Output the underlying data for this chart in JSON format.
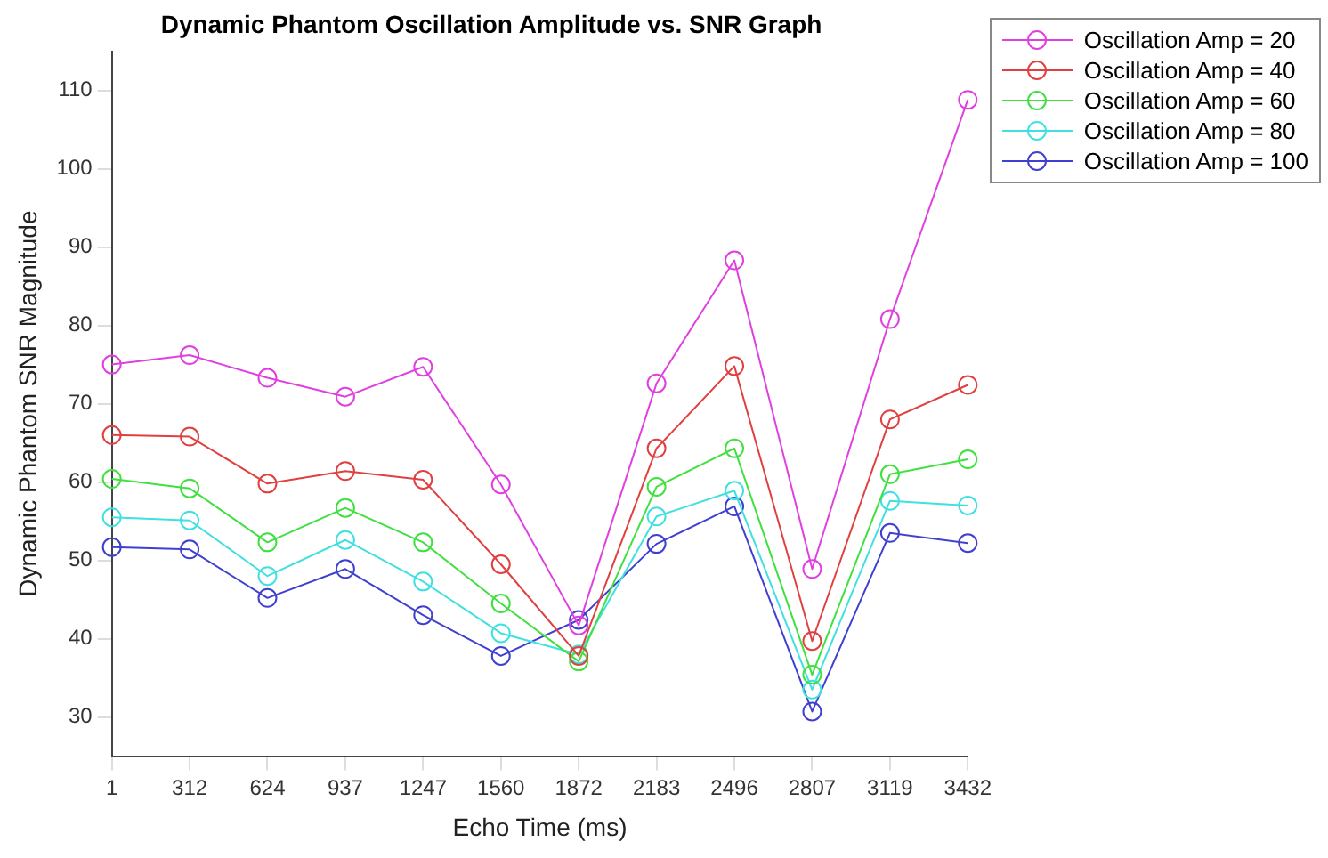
{
  "chart_data": {
    "type": "line",
    "title": "Dynamic Phantom Oscillation Amplitude vs. SNR Graph",
    "xlabel": "Echo Time (ms)",
    "ylabel": "Dynamic Phantom SNR Magnitude",
    "categories": [
      "1",
      "312",
      "624",
      "937",
      "1247",
      "1560",
      "1872",
      "2183",
      "2496",
      "2807",
      "3119",
      "3432"
    ],
    "series": [
      {
        "name": "Oscillation Amp = 20",
        "color": "#e040e0",
        "values": [
          75,
          76.2,
          73.3,
          70.9,
          74.7,
          59.7,
          41.7,
          72.6,
          88.3,
          48.9,
          80.8,
          108.8
        ]
      },
      {
        "name": "Oscillation Amp = 40",
        "color": "#e04040",
        "values": [
          66,
          65.8,
          59.8,
          61.4,
          60.3,
          49.5,
          37.8,
          64.3,
          74.8,
          39.7,
          68,
          72.4
        ]
      },
      {
        "name": "Oscillation Amp = 60",
        "color": "#40e040",
        "values": [
          60.4,
          59.2,
          52.3,
          56.7,
          52.3,
          44.5,
          37.1,
          59.4,
          64.3,
          35.4,
          61,
          62.9
        ]
      },
      {
        "name": "Oscillation Amp = 80",
        "color": "#40e0e0",
        "values": [
          55.5,
          55.1,
          48,
          52.6,
          47.3,
          40.7,
          38,
          55.6,
          58.9,
          33.5,
          57.6,
          57
        ]
      },
      {
        "name": "Oscillation Amp = 100",
        "color": "#4040d0",
        "values": [
          51.7,
          51.4,
          45.2,
          48.9,
          43,
          37.8,
          42.4,
          52.1,
          56.9,
          30.7,
          53.5,
          52.2
        ]
      }
    ],
    "ylim": [
      25,
      115
    ],
    "yticks": [
      30,
      40,
      50,
      60,
      70,
      80,
      90,
      100,
      110
    ],
    "grid": false,
    "legend": "top right",
    "marker": "circle",
    "line_style": "solid"
  }
}
